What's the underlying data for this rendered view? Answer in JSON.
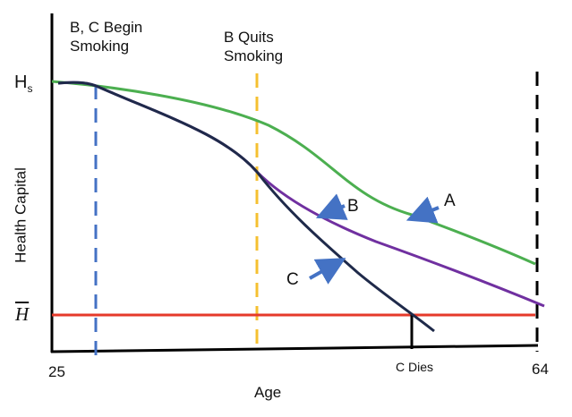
{
  "labels": {
    "begin_smoking": "B, C Begin\nSmoking",
    "quits_smoking": "B Quits\nSmoking",
    "hs": "H",
    "hs_sub": "s",
    "hbar": "H",
    "y_axis": "Health Capital",
    "x_axis": "Age",
    "age_start": "25",
    "age_end": "64",
    "c_dies": "C Dies",
    "curve_a": "A",
    "curve_b": "B",
    "curve_c": "C"
  },
  "colors": {
    "a": "#4caf50",
    "b": "#7030a0",
    "c": "#1f2a4a",
    "threshold": "#e53a2a",
    "begin": "#4472c4",
    "quit": "#f5c031",
    "arrow": "#4472c4"
  }
}
